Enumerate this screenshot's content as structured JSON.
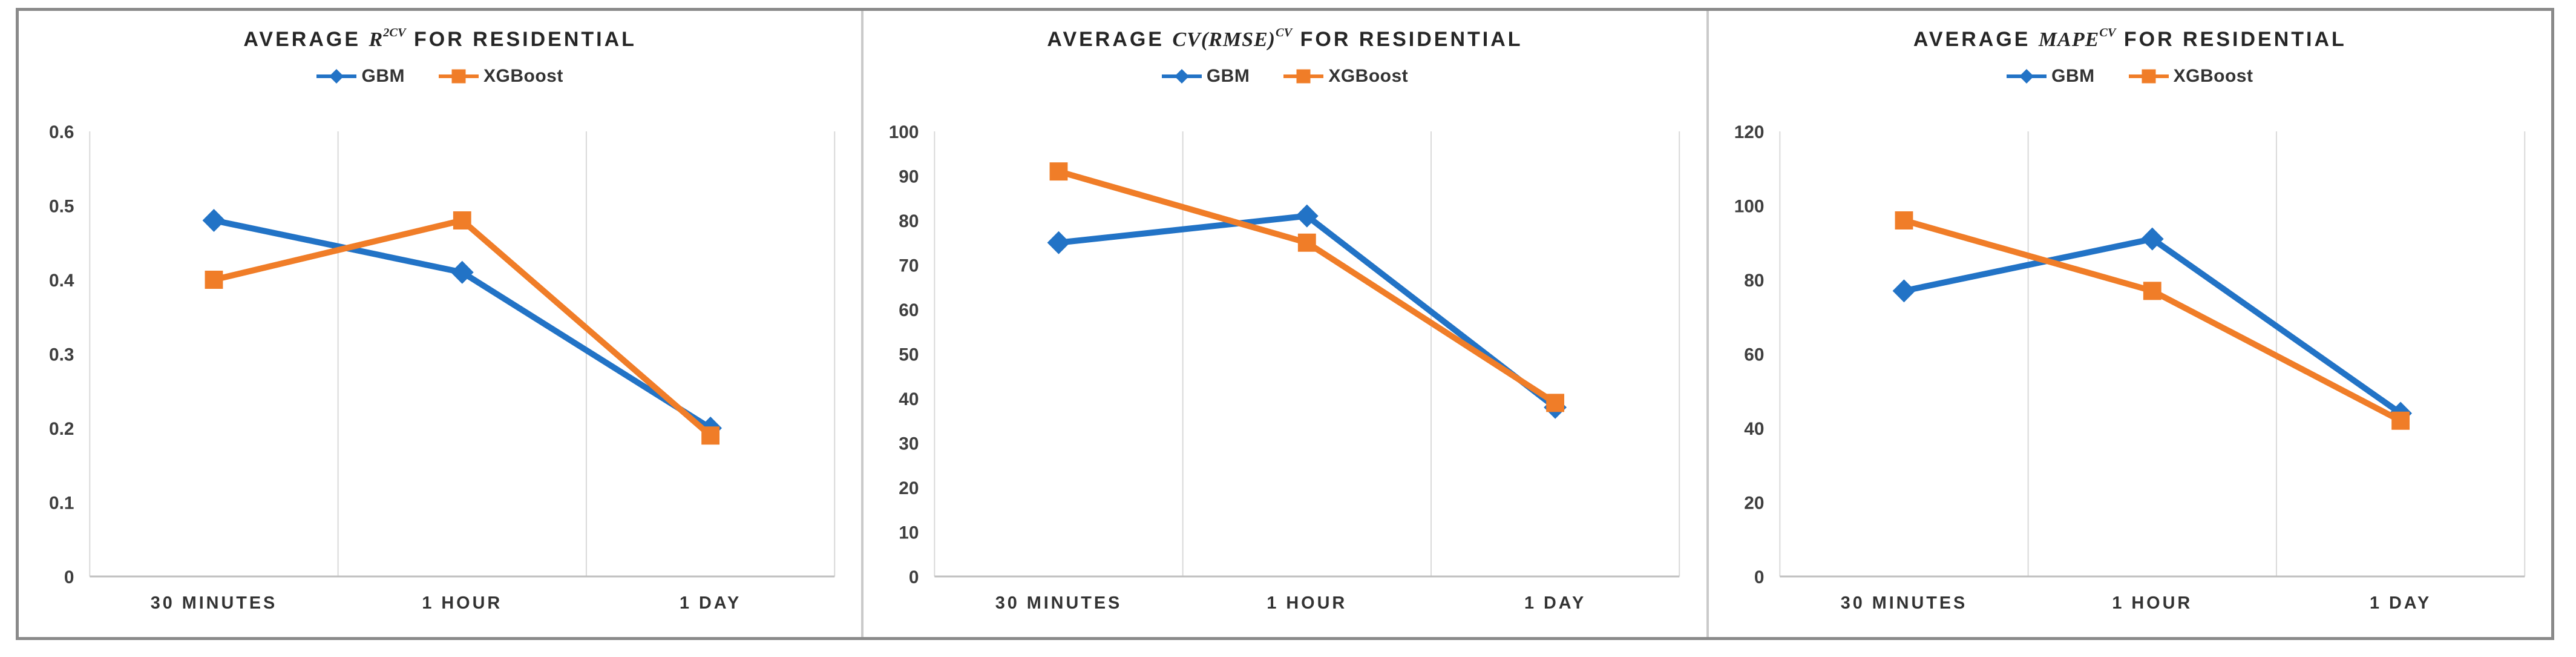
{
  "figure": {
    "frame_border_color": "#8a8a8a",
    "panel_divider_color": "#cacaca",
    "gridline_color": "#d9d9d9",
    "axis_line_color": "#bfbfbf",
    "tick_label_color": "#3f3f3f",
    "category_label_color": "#333333",
    "title_color": "#262626",
    "gbm_color": "#2273C6",
    "xgboost_color": "#F07D28"
  },
  "charts": [
    {
      "title": {
        "prefix": "AVERAGE ",
        "math": "R",
        "sup": "2CV",
        "suffix": " FOR RESIDENTIAL"
      },
      "legend": [
        {
          "name": "GBM",
          "marker": "diamond",
          "color": "#2273C6"
        },
        {
          "name": "XGBoost",
          "marker": "square",
          "color": "#F07D28"
        }
      ],
      "chart_data": {
        "type": "line",
        "title": "AVERAGE R2CV FOR RESIDENTIAL",
        "categories": [
          "30 MINUTES",
          "1 HOUR",
          "1 DAY"
        ],
        "series": [
          {
            "name": "GBM",
            "values": [
              0.48,
              0.41,
              0.2
            ],
            "color": "#2273C6",
            "marker": "diamond"
          },
          {
            "name": "XGBoost",
            "values": [
              0.4,
              0.48,
              0.19
            ],
            "color": "#F07D28",
            "marker": "square"
          }
        ],
        "xlabel": "",
        "ylabel": "",
        "ylim": [
          0,
          0.6
        ],
        "ytick_labels": [
          "0.6",
          "0.5",
          "0.4",
          "0.3",
          "0.2",
          "0.1",
          "0"
        ],
        "ytick_values": [
          0.6,
          0.5,
          0.4,
          0.3,
          0.2,
          0.1,
          0
        ],
        "grid": "vertical-category-boundaries",
        "legend_position": "top"
      }
    },
    {
      "title": {
        "prefix": "AVERAGE ",
        "math": "CV(RMSE)",
        "sup": "CV",
        "suffix": " FOR RESIDENTIAL"
      },
      "legend": [
        {
          "name": "GBM",
          "marker": "diamond",
          "color": "#2273C6"
        },
        {
          "name": "XGBoost",
          "marker": "square",
          "color": "#F07D28"
        }
      ],
      "chart_data": {
        "type": "line",
        "title": "AVERAGE CV(RMSE)CV FOR RESIDENTIAL",
        "categories": [
          "30 MINUTES",
          "1 HOUR",
          "1 DAY"
        ],
        "series": [
          {
            "name": "GBM",
            "values": [
              75,
              81,
              38
            ],
            "color": "#2273C6",
            "marker": "diamond"
          },
          {
            "name": "XGBoost",
            "values": [
              91,
              75,
              39
            ],
            "color": "#F07D28",
            "marker": "square"
          }
        ],
        "xlabel": "",
        "ylabel": "",
        "ylim": [
          0,
          100
        ],
        "ytick_labels": [
          "100",
          "90",
          "80",
          "70",
          "60",
          "50",
          "40",
          "30",
          "20",
          "10",
          "0"
        ],
        "ytick_values": [
          100,
          90,
          80,
          70,
          60,
          50,
          40,
          30,
          20,
          10,
          0
        ],
        "grid": "vertical-category-boundaries",
        "legend_position": "top"
      }
    },
    {
      "title": {
        "prefix": "AVERAGE ",
        "math": "MAPE",
        "sup": "CV",
        "suffix": " FOR RESIDENTIAL"
      },
      "legend": [
        {
          "name": "GBM",
          "marker": "diamond",
          "color": "#2273C6"
        },
        {
          "name": "XGBoost",
          "marker": "square",
          "color": "#F07D28"
        }
      ],
      "chart_data": {
        "type": "line",
        "title": "AVERAGE MAPECV FOR RESIDENTIAL",
        "categories": [
          "30 MINUTES",
          "1 HOUR",
          "1 DAY"
        ],
        "series": [
          {
            "name": "GBM",
            "values": [
              77,
              91,
              44
            ],
            "color": "#2273C6",
            "marker": "diamond"
          },
          {
            "name": "XGBoost",
            "values": [
              96,
              77,
              42
            ],
            "color": "#F07D28",
            "marker": "square"
          }
        ],
        "xlabel": "",
        "ylabel": "",
        "ylim": [
          0,
          120
        ],
        "ytick_labels": [
          "120",
          "100",
          "80",
          "60",
          "40",
          "20",
          "0"
        ],
        "ytick_values": [
          120,
          100,
          80,
          60,
          40,
          20,
          0
        ],
        "grid": "vertical-category-boundaries",
        "legend_position": "top"
      }
    }
  ]
}
